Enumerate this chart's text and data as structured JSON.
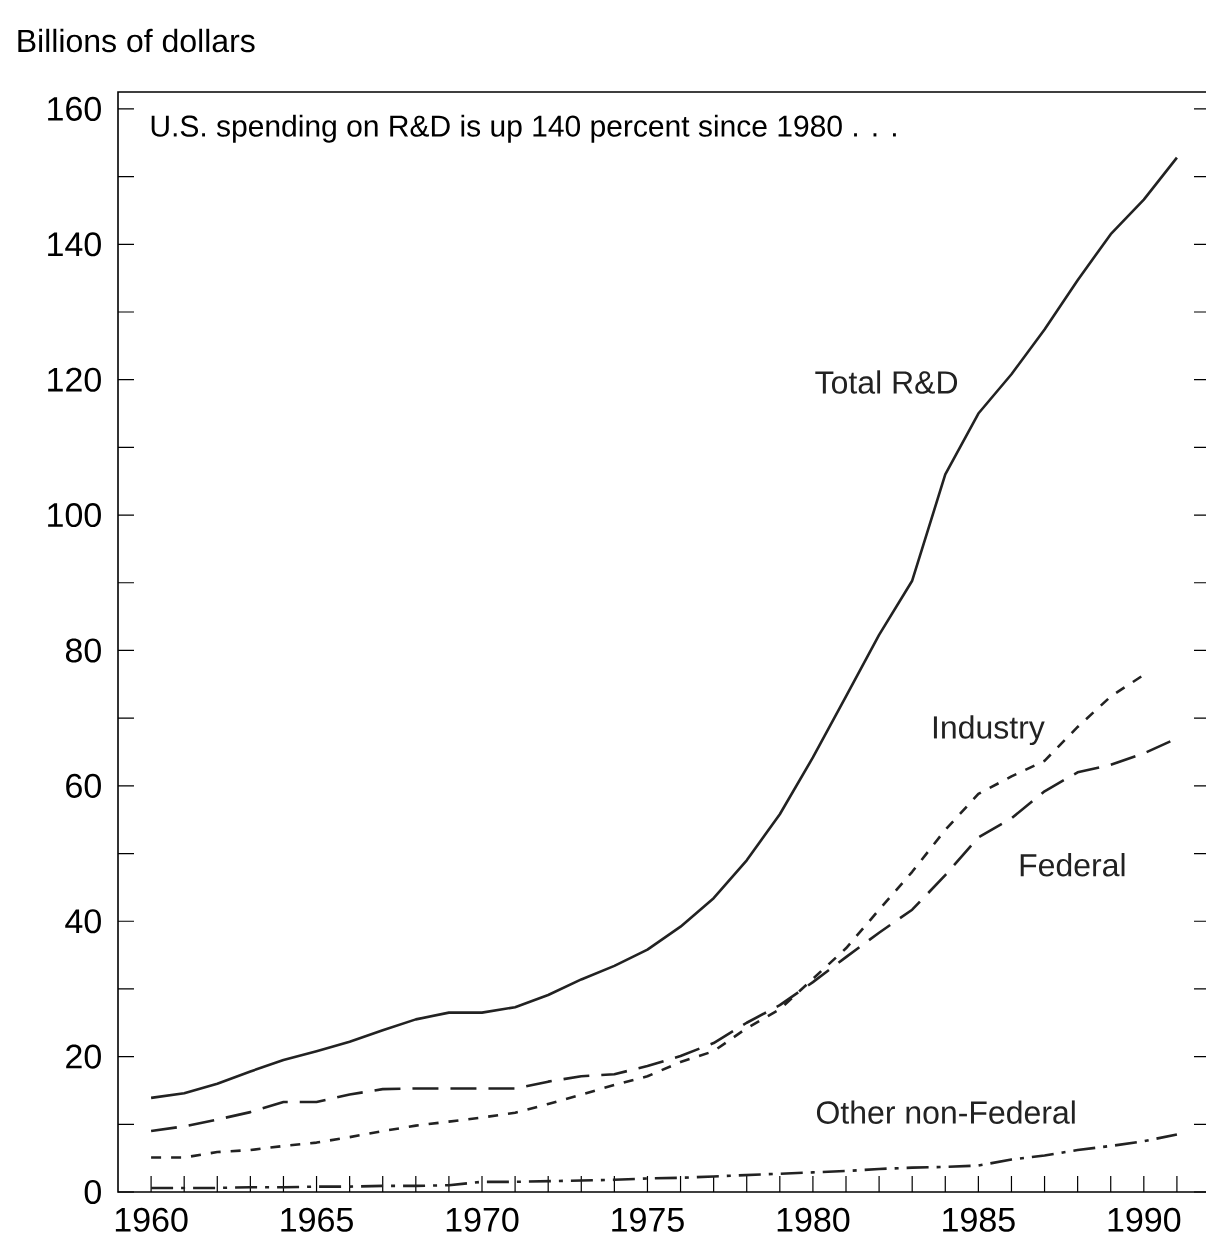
{
  "chart_data": {
    "type": "line",
    "ylabel": "Billions of dollars",
    "annotations": [
      "U.S. spending on R&D is up 140 percent since 1980 . . ."
    ],
    "x": [
      1960,
      1961,
      1962,
      1963,
      1964,
      1965,
      1966,
      1967,
      1968,
      1969,
      1970,
      1971,
      1972,
      1973,
      1974,
      1975,
      1976,
      1977,
      1978,
      1979,
      1980,
      1981,
      1982,
      1983,
      1984,
      1985,
      1986,
      1987,
      1988,
      1989,
      1990,
      1991
    ],
    "series": [
      {
        "name": "Total R&D",
        "color": "#222222",
        "line_style": "solid",
        "values": [
          13.9,
          14.6,
          16,
          17.8,
          19.5,
          20.8,
          22.2,
          23.9,
          25.5,
          26.5,
          26.5,
          27.3,
          29.1,
          31.4,
          33.4,
          35.8,
          39.2,
          43.4,
          49,
          55.8,
          64.2,
          73.2,
          82.3,
          90.3,
          106,
          115,
          120.8,
          127.4,
          134.7,
          141.5,
          146.6,
          152.8
        ]
      },
      {
        "name": "Industry",
        "color": "#222222",
        "line_style": "dotted",
        "values": [
          5.1,
          5.1,
          5.9,
          6.2,
          6.8,
          7.3,
          8.1,
          9,
          9.8,
          10.4,
          11,
          11.7,
          13,
          14.4,
          15.8,
          17.1,
          19.2,
          20.8,
          24.2,
          27,
          31.5,
          36,
          41.7,
          47.3,
          53.5,
          58.8,
          61.4,
          63.7,
          68.7,
          73.2,
          76.4,
          null
        ]
      },
      {
        "name": "Federal",
        "color": "#222222",
        "line_style": "dashed",
        "values": [
          9,
          9.7,
          10.7,
          11.8,
          13.3,
          13.3,
          14.4,
          15.2,
          15.3,
          15.3,
          15.3,
          15.3,
          16.3,
          17.1,
          17.4,
          18.6,
          20.1,
          22,
          25,
          27.6,
          31,
          34.7,
          38.3,
          41.7,
          46.8,
          52.4,
          55.2,
          59.2,
          62,
          63.1,
          64.8,
          67
        ]
      },
      {
        "name": "Other non-Federal",
        "color": "#222222",
        "line_style": "dashdot",
        "values": [
          0.6,
          0.6,
          0.6,
          0.7,
          0.7,
          0.8,
          0.8,
          0.9,
          0.9,
          1.0,
          1.5,
          1.5,
          1.6,
          1.7,
          1.8,
          2,
          2.1,
          2.3,
          2.5,
          2.7,
          2.9,
          3.1,
          3.4,
          3.6,
          3.7,
          3.9,
          4.8,
          5.4,
          6.2,
          6.8,
          7.5,
          8.5
        ]
      }
    ],
    "xlim": [
      1959,
      1992
    ],
    "ylim": [
      0,
      162.5
    ],
    "xticks": [
      1960,
      {
        "value": 1961,
        "label": null
      },
      {
        "value": 1962,
        "label": null
      },
      {
        "value": 1963,
        "label": null
      },
      {
        "value": 1964,
        "label": null
      },
      1965,
      {
        "value": 1966,
        "label": null
      },
      {
        "value": 1967,
        "label": null
      },
      {
        "value": 1968,
        "label": null
      },
      {
        "value": 1969,
        "label": null
      },
      1970,
      {
        "value": 1971,
        "label": null
      },
      {
        "value": 1972,
        "label": null
      },
      {
        "value": 1973,
        "label": null
      },
      {
        "value": 1974,
        "label": null
      },
      1975,
      {
        "value": 1976,
        "label": null
      },
      {
        "value": 1977,
        "label": null
      },
      {
        "value": 1978,
        "label": null
      },
      {
        "value": 1979,
        "label": null
      },
      1980,
      {
        "value": 1981,
        "label": null
      },
      {
        "value": 1982,
        "label": null
      },
      {
        "value": 1983,
        "label": null
      },
      {
        "value": 1984,
        "label": null
      },
      1985,
      {
        "value": 1986,
        "label": null
      },
      {
        "value": 1987,
        "label": null
      },
      {
        "value": 1988,
        "label": null
      },
      {
        "value": 1989,
        "label": null
      },
      1990,
      {
        "value": 1991,
        "label": null
      }
    ],
    "yticks": [
      0,
      {
        "value": 10,
        "label": null
      },
      20,
      {
        "value": 30,
        "label": null
      },
      40,
      {
        "value": 50,
        "label": null
      },
      60,
      {
        "value": 70,
        "label": null
      },
      80,
      {
        "value": 90,
        "label": null
      },
      100,
      {
        "value": 110,
        "label": null
      },
      120,
      {
        "value": 130,
        "label": null
      },
      140,
      {
        "value": 150,
        "label": null
      },
      160
    ]
  }
}
